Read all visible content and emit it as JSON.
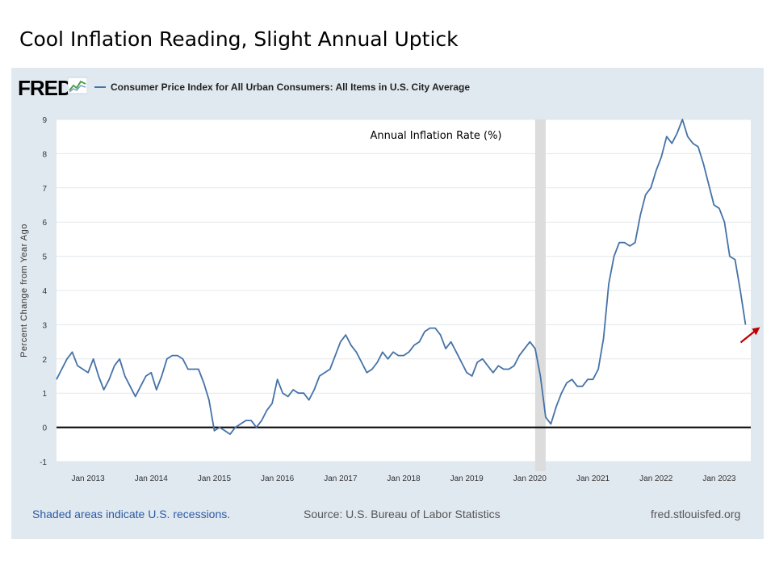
{
  "slide": {
    "title": "Cool Inflation Reading, Slight Annual Uptick"
  },
  "fred": {
    "logo_text": "FRED",
    "series_name": "Consumer Price Index for All Urban Consumers: All Items in U.S. City Average",
    "footer_left": "Shaded areas indicate U.S. recessions.",
    "footer_center": "Source: U.S. Bureau of Labor Statistics",
    "footer_right": "fred.stlouisfed.org"
  },
  "chart_data": {
    "type": "line",
    "title": "Annual Inflation Rate (%)",
    "ylabel": "Percent Change from Year Ago",
    "xlabel": "",
    "ylim": [
      -1,
      9
    ],
    "yticks": [
      -1,
      0,
      1,
      2,
      3,
      4,
      5,
      6,
      7,
      8,
      9
    ],
    "xlim": [
      "2012-07",
      "2023-07"
    ],
    "xticks": [
      {
        "date": "2013-01",
        "label": "Jan 2013"
      },
      {
        "date": "2014-01",
        "label": "Jan 2014"
      },
      {
        "date": "2015-01",
        "label": "Jan 2015"
      },
      {
        "date": "2016-01",
        "label": "Jan 2016"
      },
      {
        "date": "2017-01",
        "label": "Jan 2017"
      },
      {
        "date": "2018-01",
        "label": "Jan 2018"
      },
      {
        "date": "2019-01",
        "label": "Jan 2019"
      },
      {
        "date": "2020-01",
        "label": "Jan 2020"
      },
      {
        "date": "2021-01",
        "label": "Jan 2021"
      },
      {
        "date": "2022-01",
        "label": "Jan 2022"
      },
      {
        "date": "2023-01",
        "label": "Jan 2023"
      }
    ],
    "grid": "horizontal",
    "zero_line": true,
    "recessions": [
      {
        "start": "2020-02",
        "end": "2020-04"
      }
    ],
    "annotation_arrow": {
      "color": "#c00000",
      "points_to": "2023-06"
    },
    "series": [
      {
        "color": "#4572a7",
        "x": [
          "2012-07",
          "2012-08",
          "2012-09",
          "2012-10",
          "2012-11",
          "2012-12",
          "2013-01",
          "2013-02",
          "2013-03",
          "2013-04",
          "2013-05",
          "2013-06",
          "2013-07",
          "2013-08",
          "2013-09",
          "2013-10",
          "2013-11",
          "2013-12",
          "2014-01",
          "2014-02",
          "2014-03",
          "2014-04",
          "2014-05",
          "2014-06",
          "2014-07",
          "2014-08",
          "2014-09",
          "2014-10",
          "2014-11",
          "2014-12",
          "2015-01",
          "2015-02",
          "2015-03",
          "2015-04",
          "2015-05",
          "2015-06",
          "2015-07",
          "2015-08",
          "2015-09",
          "2015-10",
          "2015-11",
          "2015-12",
          "2016-01",
          "2016-02",
          "2016-03",
          "2016-04",
          "2016-05",
          "2016-06",
          "2016-07",
          "2016-08",
          "2016-09",
          "2016-10",
          "2016-11",
          "2016-12",
          "2017-01",
          "2017-02",
          "2017-03",
          "2017-04",
          "2017-05",
          "2017-06",
          "2017-07",
          "2017-08",
          "2017-09",
          "2017-10",
          "2017-11",
          "2017-12",
          "2018-01",
          "2018-02",
          "2018-03",
          "2018-04",
          "2018-05",
          "2018-06",
          "2018-07",
          "2018-08",
          "2018-09",
          "2018-10",
          "2018-11",
          "2018-12",
          "2019-01",
          "2019-02",
          "2019-03",
          "2019-04",
          "2019-05",
          "2019-06",
          "2019-07",
          "2019-08",
          "2019-09",
          "2019-10",
          "2019-11",
          "2019-12",
          "2020-01",
          "2020-02",
          "2020-03",
          "2020-04",
          "2020-05",
          "2020-06",
          "2020-07",
          "2020-08",
          "2020-09",
          "2020-10",
          "2020-11",
          "2020-12",
          "2021-01",
          "2021-02",
          "2021-03",
          "2021-04",
          "2021-05",
          "2021-06",
          "2021-07",
          "2021-08",
          "2021-09",
          "2021-10",
          "2021-11",
          "2021-12",
          "2022-01",
          "2022-02",
          "2022-03",
          "2022-04",
          "2022-05",
          "2022-06",
          "2022-07",
          "2022-08",
          "2022-09",
          "2022-10",
          "2022-11",
          "2022-12",
          "2023-01",
          "2023-02",
          "2023-03",
          "2023-04",
          "2023-05",
          "2023-06"
        ],
        "values": [
          1.4,
          1.7,
          2.0,
          2.2,
          1.8,
          1.7,
          1.6,
          2.0,
          1.5,
          1.1,
          1.4,
          1.8,
          2.0,
          1.5,
          1.2,
          0.9,
          1.2,
          1.5,
          1.6,
          1.1,
          1.5,
          2.0,
          2.1,
          2.1,
          2.0,
          1.7,
          1.7,
          1.7,
          1.3,
          0.8,
          -0.1,
          0.0,
          -0.1,
          -0.2,
          0.0,
          0.1,
          0.2,
          0.2,
          0.0,
          0.2,
          0.5,
          0.7,
          1.4,
          1.0,
          0.9,
          1.1,
          1.0,
          1.0,
          0.8,
          1.1,
          1.5,
          1.6,
          1.7,
          2.1,
          2.5,
          2.7,
          2.4,
          2.2,
          1.9,
          1.6,
          1.7,
          1.9,
          2.2,
          2.0,
          2.2,
          2.1,
          2.1,
          2.2,
          2.4,
          2.5,
          2.8,
          2.9,
          2.9,
          2.7,
          2.3,
          2.5,
          2.2,
          1.9,
          1.6,
          1.5,
          1.9,
          2.0,
          1.8,
          1.6,
          1.8,
          1.7,
          1.7,
          1.8,
          2.1,
          2.3,
          2.5,
          2.3,
          1.5,
          0.3,
          0.1,
          0.6,
          1.0,
          1.3,
          1.4,
          1.2,
          1.2,
          1.4,
          1.4,
          1.7,
          2.6,
          4.2,
          5.0,
          5.4,
          5.4,
          5.3,
          5.4,
          6.2,
          6.8,
          7.0,
          7.5,
          7.9,
          8.5,
          8.3,
          8.6,
          9.0,
          8.5,
          8.3,
          8.2,
          7.7,
          7.1,
          6.5,
          6.4,
          6.0,
          5.0,
          4.9,
          4.0,
          3.0
        ]
      }
    ]
  }
}
